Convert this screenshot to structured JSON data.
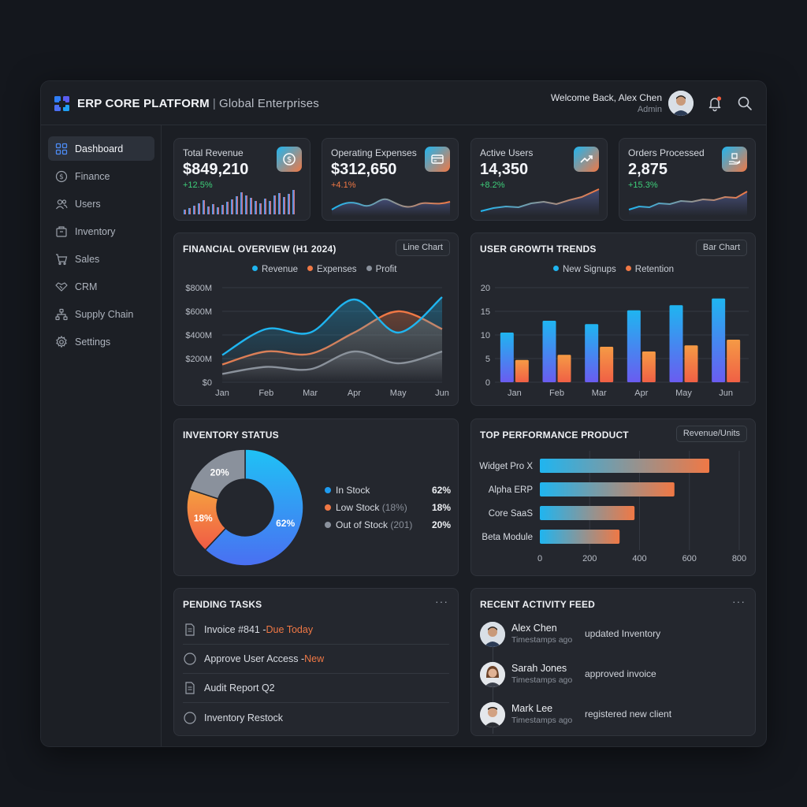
{
  "header": {
    "app_name": "ERP CORE PLATFORM",
    "separator": "|",
    "org_name": "Global Enterprises",
    "welcome": "Welcome Back, Alex Chen",
    "role": "Admin"
  },
  "sidebar": {
    "items": [
      {
        "label": "Dashboard",
        "icon": "grid-icon",
        "active": true
      },
      {
        "label": "Finance",
        "icon": "dollar-icon"
      },
      {
        "label": "Users",
        "icon": "users-icon"
      },
      {
        "label": "Inventory",
        "icon": "box-icon"
      },
      {
        "label": "Sales",
        "icon": "cart-icon"
      },
      {
        "label": "CRM",
        "icon": "handshake-icon"
      },
      {
        "label": "Supply Chain",
        "icon": "network-icon"
      },
      {
        "label": "Settings",
        "icon": "gear-icon"
      }
    ]
  },
  "stats": [
    {
      "label": "Total Revenue",
      "value": "$849,210",
      "change": "+12.5%",
      "change_color": "#3ecf7a",
      "icon": "dollar-coin-icon"
    },
    {
      "label": "Operating Expenses",
      "value": "$312,650",
      "change": "+4.1%",
      "change_color": "#f07845",
      "icon": "card-icon"
    },
    {
      "label": "Active Users",
      "value": "14,350",
      "change": "+8.2%",
      "change_color": "#3ecf7a",
      "icon": "trend-up-icon"
    },
    {
      "label": "Orders Processed",
      "value": "2,875",
      "change": "+15.3%",
      "change_color": "#3ecf7a",
      "icon": "package-hand-icon"
    }
  ],
  "financial": {
    "title": "FINANCIAL OVERVIEW (H1 2024)",
    "toggle": "Line Chart"
  },
  "growth": {
    "title": "USER GROWTH TRENDS",
    "toggle": "Bar Chart"
  },
  "inventory": {
    "title": "INVENTORY STATUS",
    "legend": [
      {
        "label": "In Stock",
        "note": "",
        "pct": "62%",
        "color": "#1e9bf0"
      },
      {
        "label": "Low Stock",
        "note": "(18%)",
        "pct": "18%",
        "color": "#f07845"
      },
      {
        "label": "Out of Stock",
        "note": "(201)",
        "pct": "20%",
        "color": "#8a919c"
      }
    ]
  },
  "top_products": {
    "title": "TOP PERFORMANCE PRODUCT",
    "toggle": "Revenue/Units"
  },
  "tasks": {
    "title": "PENDING TASKS",
    "more": "···",
    "items": [
      {
        "text": "Invoice #841 - ",
        "highlight": "Due Today",
        "icon": "document-icon"
      },
      {
        "text": "Approve User Access - ",
        "highlight": "New",
        "icon": "circle-icon"
      },
      {
        "text": "Audit Report Q2",
        "highlight": "",
        "icon": "document-icon"
      },
      {
        "text": "Inventory Restock",
        "highlight": "",
        "icon": "circle-icon"
      }
    ]
  },
  "activity": {
    "title": "RECENT ACTIVITY FEED",
    "more": "···",
    "items": [
      {
        "name": "Alex Chen",
        "time": "Timestamps ago",
        "action": "updated Inventory"
      },
      {
        "name": "Sarah Jones",
        "time": "Timestamps ago",
        "action": "approved invoice"
      },
      {
        "name": "Mark Lee",
        "time": "Timestamps ago",
        "action": "registered new client"
      }
    ]
  },
  "chart_data": [
    {
      "type": "line",
      "title": "FINANCIAL OVERVIEW (H1 2024)",
      "categories": [
        "Jan",
        "Feb",
        "Mar",
        "Apr",
        "May",
        "Jun"
      ],
      "ylim": [
        0,
        800
      ],
      "yticks": [
        "$0",
        "$200M",
        "$400M",
        "$600M",
        "$800M"
      ],
      "series": [
        {
          "name": "Revenue",
          "color": "#1fb5f0",
          "values": [
            230,
            450,
            420,
            700,
            420,
            720
          ]
        },
        {
          "name": "Expenses",
          "color": "#f07845",
          "values": [
            150,
            260,
            240,
            420,
            600,
            450
          ]
        },
        {
          "name": "Profit",
          "color": "#8a919c",
          "values": [
            70,
            130,
            110,
            260,
            160,
            260
          ]
        }
      ],
      "legend": "top-center",
      "grid": true
    },
    {
      "type": "bar",
      "title": "USER GROWTH TRENDS",
      "categories": [
        "Jan",
        "Feb",
        "Mar",
        "Apr",
        "May",
        "Jun"
      ],
      "ylim": [
        0,
        20
      ],
      "yticks": [
        "0",
        "5",
        "10",
        "15",
        "20"
      ],
      "series": [
        {
          "name": "New Signups",
          "color": "#1fb5f0",
          "values": [
            10.5,
            13,
            12.3,
            15.2,
            16.3,
            17.7
          ]
        },
        {
          "name": "Retention",
          "color": "#f07845",
          "values": [
            4.7,
            5.8,
            7.5,
            6.5,
            7.8,
            9
          ]
        }
      ],
      "legend": "top-center",
      "grid": true
    },
    {
      "type": "pie",
      "title": "INVENTORY STATUS",
      "labels": [
        "In Stock",
        "Low Stock",
        "Out of Stock"
      ],
      "values": [
        62,
        18,
        20
      ],
      "display_labels": [
        "62%",
        "18%",
        "20%"
      ],
      "colors": [
        "#1e9bf0",
        "#f07845",
        "#8a919c"
      ]
    },
    {
      "type": "bar",
      "title": "TOP PERFORMANCE PRODUCT",
      "orientation": "horizontal",
      "categories": [
        "Widget Pro X",
        "Alpha ERP",
        "Core SaaS",
        "Beta Module"
      ],
      "values": [
        680,
        540,
        380,
        320
      ],
      "xlim": [
        0,
        800
      ],
      "xticks": [
        "0",
        "200",
        "400",
        "600",
        "800"
      ],
      "grid": true
    }
  ]
}
